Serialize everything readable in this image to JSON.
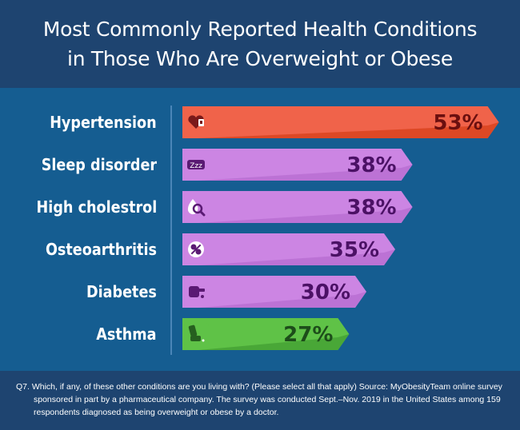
{
  "header": {
    "title_line1": "Most Commonly Reported Health Conditions",
    "title_line2": "in Those Who Are Overweight or Obese"
  },
  "chart_data": {
    "type": "bar",
    "orientation": "horizontal",
    "title": "Most Commonly Reported Health Conditions in Those Who Are Overweight or Obese",
    "categories": [
      "Hypertension",
      "Sleep disorder",
      "High cholestrol",
      "Osteoarthritis",
      "Diabetes",
      "Asthma"
    ],
    "values": [
      53,
      38,
      38,
      35,
      30,
      27
    ],
    "value_labels": [
      "53%",
      "38%",
      "38%",
      "35%",
      "30%",
      "27%"
    ],
    "icons": [
      "heart-monitor-icon",
      "sleep-mask-icon",
      "blood-drop-magnifier-icon",
      "joint-icon",
      "glucose-meter-icon",
      "inhaler-icon"
    ],
    "bar_colors": [
      "#f0634a",
      "#cc85e3",
      "#cc85e3",
      "#cc85e3",
      "#cc85e3",
      "#5fc247"
    ],
    "label_colors": [
      "#6b0f0f",
      "#4b1165",
      "#4b1165",
      "#4b1165",
      "#4b1165",
      "#1d4d1a"
    ],
    "icon_bg_colors": [
      "#7a1a1a",
      "#5a1a73",
      "#5a1a73",
      "#5a1a73",
      "#5a1a73",
      "#26601f"
    ]
  },
  "colors": {
    "header_bg": "#1e4470",
    "plot_bg": "#155d91"
  },
  "footer": {
    "line1": "Q7. Which, if any, of these other conditions are you living with? (Please select all that apply) Source: MyObesityTeam online survey",
    "line2": "sponsored in part by a pharmaceutical company. The survey was conducted Sept.–Nov. 2019 in the United States among 159",
    "line3": "respondents diagnosed as being overweight or obese by a doctor."
  }
}
